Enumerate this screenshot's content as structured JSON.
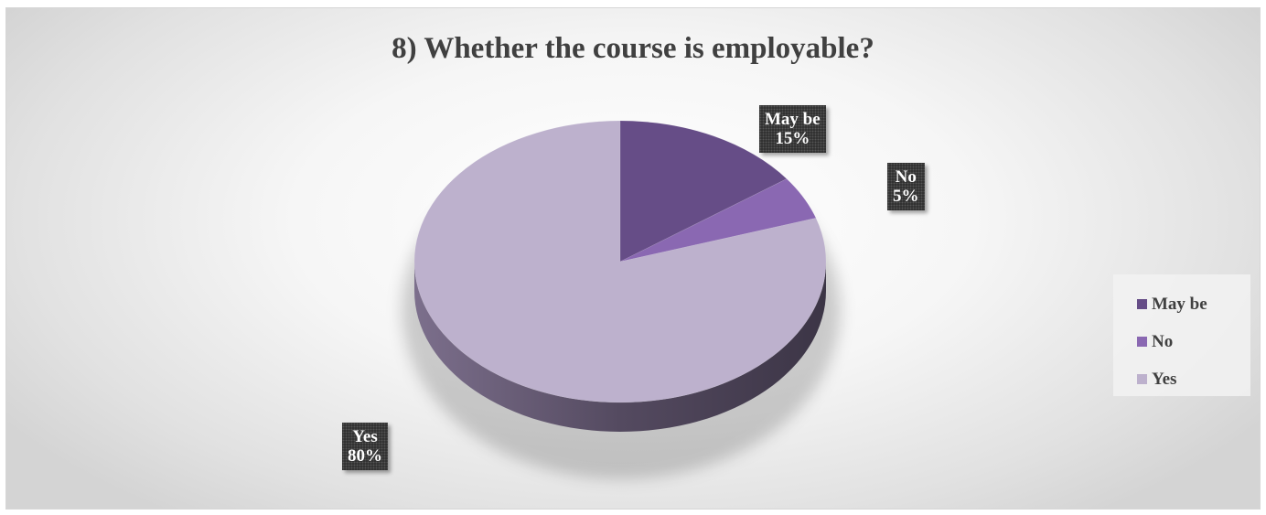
{
  "chart_data": {
    "type": "pie",
    "title": "8) Whether the course is employable?",
    "categories": [
      "May be",
      "No",
      "Yes"
    ],
    "values": [
      15,
      5,
      80
    ],
    "data_labels": [
      {
        "name": "May be",
        "value": "15%"
      },
      {
        "name": "No",
        "value": "5%"
      },
      {
        "name": "Yes",
        "value": "80%"
      }
    ],
    "colors": [
      "#664d87",
      "#8a68b2",
      "#bdb1cd"
    ],
    "legend_position": "right",
    "style": "3d"
  }
}
